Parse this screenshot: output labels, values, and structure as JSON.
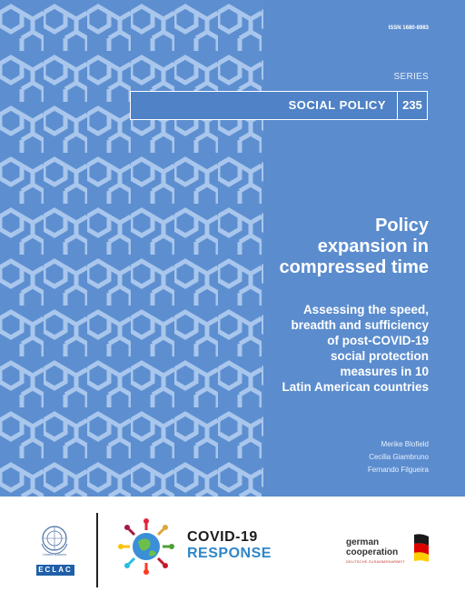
{
  "cover": {
    "issn": "ISSN 1680-8983",
    "series_label": "SERIES",
    "series_name": "SOCIAL POLICY",
    "series_number": "235",
    "title_lines": [
      "Policy",
      "expansion in",
      "compressed time"
    ],
    "subtitle_lines": [
      "Assessing the speed,",
      "breadth and sufficiency",
      "of post-COVID-19",
      "social protection",
      "measures in 10",
      "Latin American countries"
    ],
    "authors": [
      "Merike Blofield",
      "Cecilia Giambruno",
      "Fernando Filgueira"
    ],
    "colors": {
      "background": "#5d8fd0",
      "pattern_line": "#a9c6ec",
      "series_box": "#4f82c6",
      "text": "#ffffff"
    }
  },
  "footer": {
    "un_caption": "United Nations",
    "eclac_label": "ECLAC",
    "covid_line1": "COVID-19",
    "covid_line2": "RESPONSE",
    "german_line1": "german",
    "german_line2": "cooperation",
    "german_line3": "DEUTSCHE ZUSAMMENARBEIT",
    "icons": [
      "un-emblem-icon",
      "covid-globe-icon",
      "german-flag-icon"
    ]
  }
}
